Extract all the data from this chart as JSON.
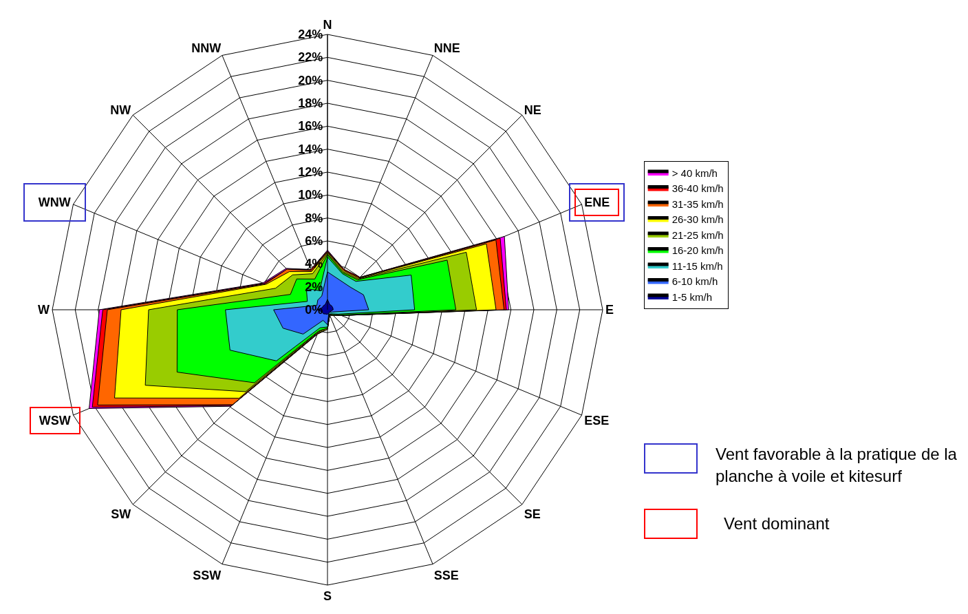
{
  "chart_data": {
    "type": "radar",
    "categories": [
      "N",
      "NNE",
      "NE",
      "ENE",
      "E",
      "ESE",
      "SE",
      "SSE",
      "S",
      "SSW",
      "SW",
      "WSW",
      "W",
      "WNW",
      "NW",
      "NNW"
    ],
    "series": [
      {
        "name": "> 40 km/h",
        "color": "#ff00ff",
        "values": [
          5.2,
          3.8,
          4.0,
          16.7,
          15.8,
          1.3,
          0.7,
          0.5,
          1.7,
          2.3,
          11.9,
          22.5,
          19.9,
          6.1,
          5.1,
          3.8
        ]
      },
      {
        "name": "36-40 km/h",
        "color": "#ff0000",
        "values": [
          5.1,
          3.8,
          4.0,
          16.3,
          15.6,
          1.3,
          0.7,
          0.5,
          1.7,
          2.3,
          11.8,
          22.2,
          19.6,
          6.0,
          5.0,
          3.8
        ]
      },
      {
        "name": "31-35 km/h",
        "color": "#ff6600",
        "values": [
          5.1,
          3.7,
          3.9,
          15.9,
          15.4,
          1.3,
          0.7,
          0.5,
          1.7,
          2.2,
          11.7,
          21.7,
          19.2,
          5.9,
          5.0,
          3.7
        ]
      },
      {
        "name": "26-30 km/h",
        "color": "#ffff00",
        "values": [
          5.0,
          3.7,
          3.9,
          15.0,
          14.7,
          1.3,
          0.7,
          0.5,
          1.7,
          2.2,
          10.9,
          20.1,
          18.0,
          5.8,
          4.7,
          3.6
        ]
      },
      {
        "name": "21-25 km/h",
        "color": "#99cc00",
        "values": [
          4.9,
          3.6,
          3.8,
          13.1,
          13.0,
          1.3,
          0.6,
          0.5,
          1.6,
          2.1,
          10.1,
          17.2,
          15.6,
          4.9,
          4.3,
          3.4
        ]
      },
      {
        "name": "16-20 km/h",
        "color": "#00ff00",
        "values": [
          4.8,
          3.5,
          3.7,
          11.3,
          11.2,
          1.2,
          0.6,
          0.4,
          1.6,
          2.0,
          9.0,
          14.2,
          13.1,
          3.5,
          3.8,
          2.9
        ]
      },
      {
        "name": "11-15 km/h",
        "color": "#33cccc",
        "values": [
          4.6,
          3.4,
          3.5,
          7.9,
          7.6,
          1.0,
          0.5,
          0.4,
          1.5,
          1.7,
          6.3,
          9.2,
          8.9,
          1.9,
          2.6,
          1.8
        ]
      },
      {
        "name": "6-10 km/h",
        "color": "#3366ff",
        "values": [
          3.3,
          2.8,
          2.8,
          3.4,
          3.6,
          0.5,
          0.3,
          0.3,
          1.3,
          1.0,
          3.0,
          4.2,
          4.7,
          1.0,
          1.2,
          1.3
        ]
      },
      {
        "name": "1-5 km/h",
        "color": "#000099",
        "values": [
          0.9,
          0.5,
          0.5,
          0.5,
          0.5,
          0.3,
          0.3,
          0.3,
          0.4,
          0.4,
          0.5,
          0.5,
          0.9,
          0.5,
          0.5,
          0.5
        ]
      }
    ],
    "ylim": [
      0,
      24
    ],
    "yticks": [
      {
        "value": 0,
        "label": "0%"
      },
      {
        "value": 2,
        "label": "2%"
      },
      {
        "value": 4,
        "label": "4%"
      },
      {
        "value": 6,
        "label": "6%"
      },
      {
        "value": 8,
        "label": "8%"
      },
      {
        "value": 10,
        "label": "10%"
      },
      {
        "value": 12,
        "label": "12%"
      },
      {
        "value": 14,
        "label": "14%"
      },
      {
        "value": 16,
        "label": "16%"
      },
      {
        "value": 18,
        "label": "18%"
      },
      {
        "value": 20,
        "label": "20%"
      },
      {
        "value": 22,
        "label": "22%"
      },
      {
        "value": 24,
        "label": "24%"
      }
    ],
    "grid": true,
    "legend": "right",
    "marker": "none",
    "line_style": "solid",
    "annotations": [
      "Vent favorable à la pratique de la planche à voile et kitesurf",
      "Vent dominant"
    ]
  }
}
